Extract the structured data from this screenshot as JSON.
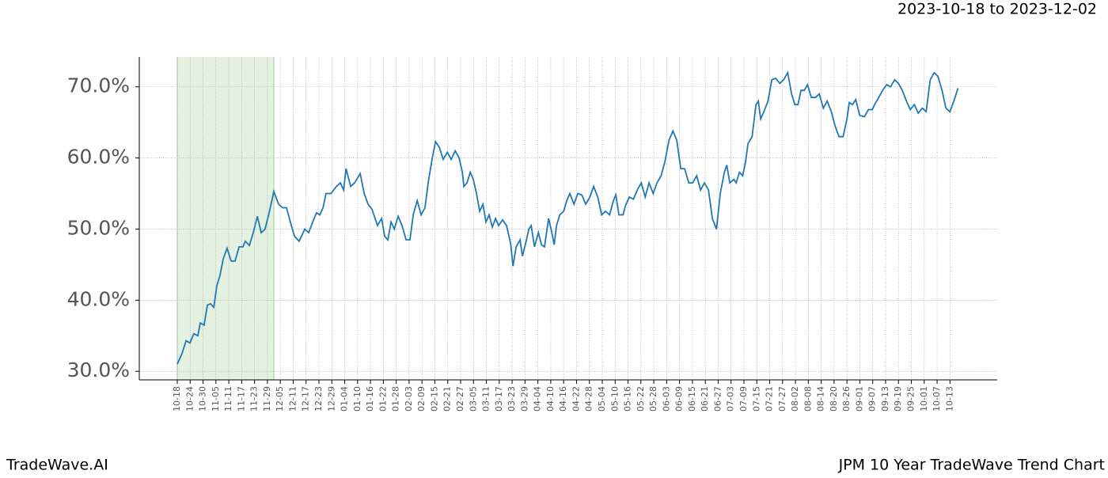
{
  "header": {
    "date_range": "2023-10-18 to 2023-12-02"
  },
  "footer": {
    "brand": "TradeWave.AI",
    "caption": "JPM 10 Year TradeWave Trend Chart"
  },
  "chart_data": {
    "type": "line",
    "highlight": [
      0,
      45
    ],
    "highlight_color": "#d9ead3",
    "grid": true,
    "xlim": [
      -17.7,
      382
    ],
    "ylim": [
      28.8,
      74.2
    ],
    "yticks": [
      {
        "value": 30,
        "label": "30.0%"
      },
      {
        "value": 40,
        "label": "40.0%"
      },
      {
        "value": 50,
        "label": "50.0%"
      },
      {
        "value": 60,
        "label": "60.0%"
      },
      {
        "value": 70,
        "label": "70.0%"
      }
    ],
    "xticks": [
      {
        "value": 0,
        "label": "10-18"
      },
      {
        "value": 6,
        "label": "10-24"
      },
      {
        "value": 12,
        "label": "10-30"
      },
      {
        "value": 18,
        "label": "11-05"
      },
      {
        "value": 24,
        "label": "11-11"
      },
      {
        "value": 30,
        "label": "11-17"
      },
      {
        "value": 36,
        "label": "11-23"
      },
      {
        "value": 42,
        "label": "11-29"
      },
      {
        "value": 48,
        "label": "12-05"
      },
      {
        "value": 54,
        "label": "12-11"
      },
      {
        "value": 60,
        "label": "12-17"
      },
      {
        "value": 66,
        "label": "12-23"
      },
      {
        "value": 72,
        "label": "12-29"
      },
      {
        "value": 78,
        "label": "01-04"
      },
      {
        "value": 84,
        "label": "01-10"
      },
      {
        "value": 90,
        "label": "01-16"
      },
      {
        "value": 96,
        "label": "01-22"
      },
      {
        "value": 102,
        "label": "01-28"
      },
      {
        "value": 108,
        "label": "02-03"
      },
      {
        "value": 114,
        "label": "02-09"
      },
      {
        "value": 120,
        "label": "02-15"
      },
      {
        "value": 126,
        "label": "02-21"
      },
      {
        "value": 132,
        "label": "02-27"
      },
      {
        "value": 138,
        "label": "03-05"
      },
      {
        "value": 144,
        "label": "03-11"
      },
      {
        "value": 150,
        "label": "03-17"
      },
      {
        "value": 156,
        "label": "03-23"
      },
      {
        "value": 162,
        "label": "03-29"
      },
      {
        "value": 168,
        "label": "04-04"
      },
      {
        "value": 174,
        "label": "04-10"
      },
      {
        "value": 180,
        "label": "04-16"
      },
      {
        "value": 186,
        "label": "04-22"
      },
      {
        "value": 192,
        "label": "04-28"
      },
      {
        "value": 198,
        "label": "05-04"
      },
      {
        "value": 204,
        "label": "05-10"
      },
      {
        "value": 210,
        "label": "05-16"
      },
      {
        "value": 216,
        "label": "05-22"
      },
      {
        "value": 222,
        "label": "05-28"
      },
      {
        "value": 228,
        "label": "06-03"
      },
      {
        "value": 234,
        "label": "06-09"
      },
      {
        "value": 240,
        "label": "06-15"
      },
      {
        "value": 246,
        "label": "06-21"
      },
      {
        "value": 252,
        "label": "06-27"
      },
      {
        "value": 258,
        "label": "07-03"
      },
      {
        "value": 264,
        "label": "07-09"
      },
      {
        "value": 270,
        "label": "07-15"
      },
      {
        "value": 276,
        "label": "07-21"
      },
      {
        "value": 282,
        "label": "07-27"
      },
      {
        "value": 288,
        "label": "08-02"
      },
      {
        "value": 294,
        "label": "08-08"
      },
      {
        "value": 300,
        "label": "08-14"
      },
      {
        "value": 306,
        "label": "08-20"
      },
      {
        "value": 312,
        "label": "08-26"
      },
      {
        "value": 318,
        "label": "09-01"
      },
      {
        "value": 324,
        "label": "09-07"
      },
      {
        "value": 330,
        "label": "09-13"
      },
      {
        "value": 336,
        "label": "09-19"
      },
      {
        "value": 342,
        "label": "09-25"
      },
      {
        "value": 348,
        "label": "10-01"
      },
      {
        "value": 354,
        "label": "10-07"
      },
      {
        "value": 360,
        "label": "10-13"
      }
    ],
    "x": [
      0,
      2.2,
      4.1,
      5.9,
      7.7,
      9.6,
      10.7,
      12.5,
      14.0,
      15.5,
      17.0,
      18.4,
      19.9,
      21.4,
      23.2,
      25.1,
      26.9,
      28.8,
      30.6,
      31.7,
      33.6,
      35.4,
      37.3,
      39.1,
      40.9,
      42.8,
      45.0,
      47.2,
      49.1,
      50.9,
      52.7,
      54.6,
      56.8,
      59.4,
      61.2,
      63.1,
      64.9,
      66.4,
      67.9,
      69.3,
      71.6,
      74.1,
      76.0,
      77.5,
      78.6,
      80.8,
      82.6,
      85.2,
      87.1,
      88.9,
      90.7,
      93.3,
      95.2,
      96.6,
      98.1,
      99.6,
      101.1,
      102.9,
      104.7,
      106.6,
      108.4,
      109.9,
      111.8,
      113.6,
      115.4,
      116.9,
      118.8,
      120.3,
      122.1,
      123.9,
      125.8,
      127.6,
      129.5,
      131.3,
      132.8,
      133.5,
      135.0,
      136.5,
      137.9,
      139.4,
      140.9,
      142.4,
      143.8,
      145.3,
      146.8,
      148.3,
      149.7,
      151.6,
      153.4,
      155.3,
      156.4,
      157.9,
      159.7,
      160.8,
      162.3,
      163.8,
      164.9,
      166.4,
      168.2,
      169.7,
      171.1,
      173.0,
      174.5,
      175.6,
      176.7,
      178.2,
      180.0,
      181.5,
      182.9,
      184.8,
      186.6,
      188.5,
      190.3,
      192.2,
      194.0,
      195.9,
      197.7,
      199.5,
      201.4,
      203.2,
      204.3,
      205.8,
      207.7,
      208.8,
      210.6,
      212.5,
      214.3,
      216.2,
      218.0,
      219.8,
      221.7,
      223.5,
      225.4,
      227.2,
      229.1,
      230.9,
      232.7,
      234.6,
      236.4,
      238.3,
      240.1,
      242.0,
      243.8,
      245.6,
      247.5,
      249.3,
      251.2,
      253.0,
      254.9,
      256.0,
      257.4,
      259.3,
      260.4,
      261.9,
      263.4,
      264.8,
      265.9,
      267.8,
      269.6,
      270.7,
      271.8,
      273.3,
      275.2,
      277.0,
      278.8,
      280.7,
      282.5,
      284.4,
      286.2,
      287.7,
      289.2,
      290.6,
      292.1,
      293.6,
      295.4,
      297.3,
      299.1,
      301.0,
      302.8,
      304.7,
      306.5,
      308.3,
      310.2,
      312.0,
      313.1,
      314.6,
      316.1,
      317.9,
      320.1,
      322.0,
      323.8,
      324.9,
      326.8,
      328.6,
      330.5,
      332.3,
      334.2,
      336.0,
      337.8,
      339.7,
      341.5,
      343.4,
      345.2,
      347.1,
      348.9,
      350.8,
      352.6,
      354.4,
      356.3,
      358.1,
      360.0,
      361.8,
      363.7
    ],
    "series": [
      {
        "color": "#1f77b4",
        "values": [
          31,
          32.5,
          34.3,
          34,
          35.3,
          35,
          36.8,
          36.5,
          39.3,
          39.5,
          39.0,
          42,
          43.5,
          45.8,
          47.3,
          45.5,
          45.5,
          47.5,
          47.5,
          48.3,
          47.7,
          49.5,
          51.8,
          49.5,
          50,
          52.3,
          55.3,
          53.5,
          53,
          53,
          51,
          49,
          48.3,
          50,
          49.5,
          51,
          52.3,
          52,
          53,
          55,
          55,
          56,
          56.5,
          55.5,
          58.5,
          56,
          56.5,
          57.8,
          55,
          53.5,
          52.8,
          50.5,
          51.5,
          49,
          48.5,
          51,
          50,
          51.8,
          50.5,
          48.5,
          48.5,
          52,
          54,
          52,
          53,
          56.5,
          60,
          62.3,
          61.5,
          59.8,
          60.8,
          59.8,
          61,
          60,
          58,
          56,
          56.5,
          58,
          57,
          55,
          52.5,
          53.5,
          51,
          52,
          50.3,
          51.5,
          50.5,
          51.3,
          50.5,
          48,
          44.8,
          47.5,
          48.5,
          46.2,
          48,
          50,
          50.5,
          47.5,
          49.5,
          47.8,
          47.5,
          51.5,
          49.5,
          47.8,
          50.5,
          52,
          52.5,
          54,
          55,
          53.5,
          55,
          54.8,
          53.5,
          54.5,
          56,
          54.5,
          52,
          52.5,
          52,
          54,
          54.8,
          52,
          52,
          53.3,
          54.5,
          54.2,
          55.5,
          56.5,
          54.5,
          56.5,
          55,
          56.5,
          57.5,
          59.5,
          62.5,
          63.8,
          62.5,
          58.5,
          58.5,
          56.5,
          56.5,
          57.5,
          55.5,
          56.5,
          55.5,
          51.5,
          50,
          55,
          58,
          59,
          56.5,
          57,
          56.5,
          58,
          57.5,
          59.5,
          62,
          63,
          67.5,
          68,
          65.5,
          66.5,
          68,
          71,
          71.2,
          70.5,
          71,
          72,
          69,
          67.5,
          67.5,
          69.5,
          69.5,
          70.3,
          68.5,
          68.5,
          69,
          67,
          68,
          66.5,
          64.5,
          63,
          63,
          65.5,
          67.8,
          67.5,
          68.2,
          66,
          65.8,
          66.8,
          66.8,
          67.5,
          68.5,
          69.5,
          70.3,
          70,
          71,
          70.5,
          69.5,
          68,
          66.8,
          67.5,
          66.3,
          67,
          66.5,
          71,
          72,
          71.5,
          69.5,
          67,
          66.5,
          68,
          69.8
        ]
      }
    ]
  }
}
